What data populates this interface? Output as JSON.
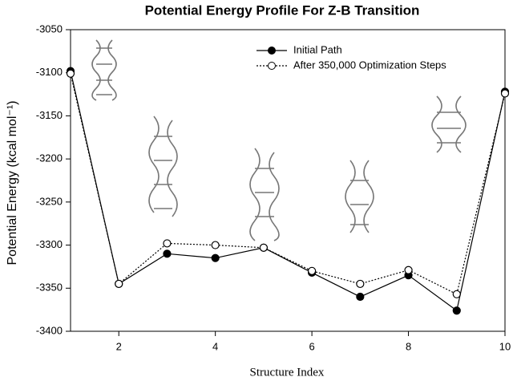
{
  "chart_data": {
    "type": "line",
    "title": "Potential Energy Profile For Z-B Transition",
    "xlabel": "Structure Index",
    "ylabel": "Potential Energy (kcal mol⁻¹)",
    "x": [
      1,
      2,
      3,
      4,
      5,
      6,
      7,
      8,
      9,
      10
    ],
    "series": [
      {
        "name": "Initial Path",
        "color": "#000000",
        "style": "solid",
        "marker": "filled",
        "values": [
          -3098,
          -3345,
          -3310,
          -3315,
          -3303,
          -3332,
          -3360,
          -3335,
          -3376,
          -3122
        ]
      },
      {
        "name": "After 350,000 Optimization Steps",
        "color": "#000000",
        "style": "dotted",
        "marker": "open",
        "values": [
          -3101,
          -3345,
          -3298,
          -3300,
          -3303,
          -3330,
          -3345,
          -3329,
          -3357,
          -3124
        ]
      }
    ],
    "xlim": [
      1,
      10
    ],
    "xticks": [
      2,
      4,
      6,
      8,
      10
    ],
    "ylim": [
      -3400,
      -3050
    ],
    "yticks": [
      -3400,
      -3350,
      -3300,
      -3250,
      -3200,
      -3150,
      -3100,
      -3050
    ],
    "legend": "upper-right"
  }
}
